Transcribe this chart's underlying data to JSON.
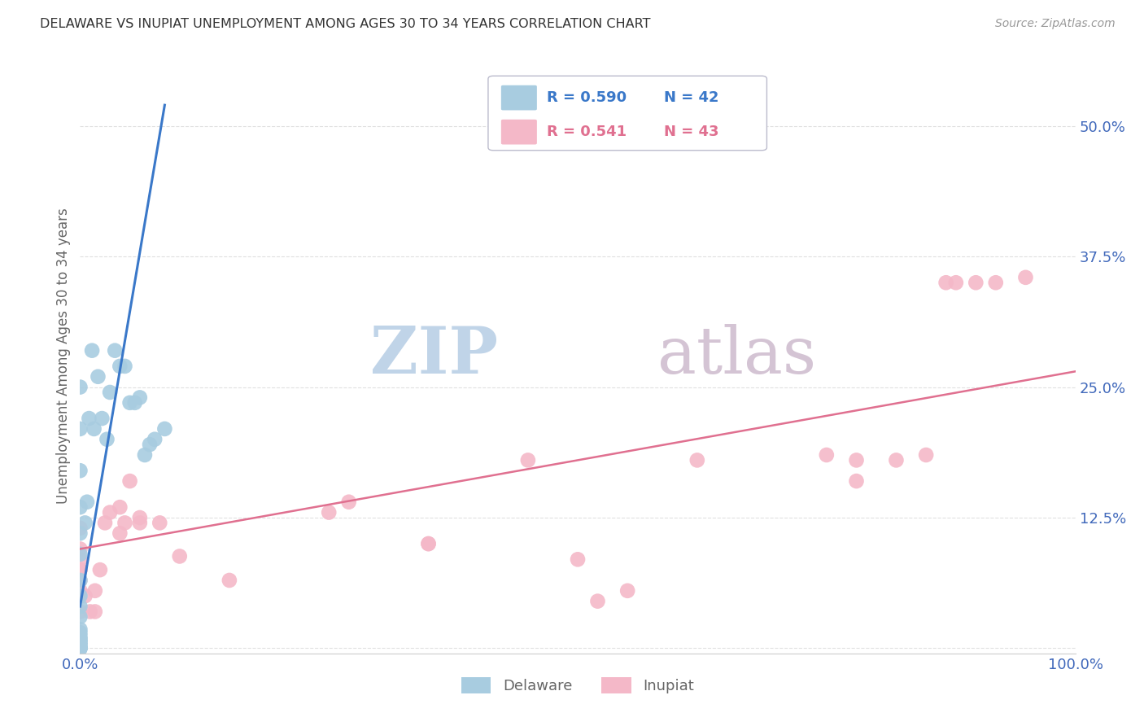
{
  "title": "DELAWARE VS INUPIAT UNEMPLOYMENT AMONG AGES 30 TO 34 YEARS CORRELATION CHART",
  "source": "Source: ZipAtlas.com",
  "ylabel": "Unemployment Among Ages 30 to 34 years",
  "xlim": [
    0.0,
    1.0
  ],
  "ylim": [
    -0.005,
    0.565
  ],
  "yticks": [
    0.0,
    0.125,
    0.25,
    0.375,
    0.5
  ],
  "ytick_labels": [
    "",
    "12.5%",
    "25.0%",
    "37.5%",
    "50.0%"
  ],
  "xticks": [
    0.0,
    0.1,
    0.2,
    0.3,
    0.4,
    0.5,
    0.6,
    0.7,
    0.8,
    0.9,
    1.0
  ],
  "xtick_labels": [
    "0.0%",
    "",
    "",
    "",
    "",
    "",
    "",
    "",
    "",
    "",
    "100.0%"
  ],
  "legend_r_blue": "R = 0.590",
  "legend_n_blue": "N = 42",
  "legend_r_pink": "R = 0.541",
  "legend_n_pink": "N = 43",
  "blue_color": "#a8cce0",
  "pink_color": "#f4b8c8",
  "blue_line_color": "#3a78c9",
  "pink_line_color": "#e07090",
  "axis_label_color": "#4169bb",
  "title_color": "#333333",
  "grid_color": "#e0e0e0",
  "watermark_zip_color": "#c5d8e8",
  "watermark_atlas_color": "#d8c8d8",
  "delaware_x": [
    0.0,
    0.0,
    0.0,
    0.0,
    0.0,
    0.0,
    0.0,
    0.0,
    0.0,
    0.0,
    0.0,
    0.0,
    0.0,
    0.0,
    0.0,
    0.0,
    0.0,
    0.0,
    0.0,
    0.0,
    0.0,
    0.0,
    0.0,
    0.005,
    0.007,
    0.009,
    0.012,
    0.014,
    0.018,
    0.022,
    0.027,
    0.03,
    0.035,
    0.04,
    0.045,
    0.05,
    0.055,
    0.06,
    0.065,
    0.07,
    0.075,
    0.085
  ],
  "delaware_y": [
    0.0,
    0.0,
    0.0,
    0.0,
    0.003,
    0.003,
    0.006,
    0.006,
    0.009,
    0.009,
    0.012,
    0.015,
    0.018,
    0.03,
    0.04,
    0.05,
    0.065,
    0.09,
    0.11,
    0.135,
    0.17,
    0.21,
    0.25,
    0.12,
    0.14,
    0.22,
    0.285,
    0.21,
    0.26,
    0.22,
    0.2,
    0.245,
    0.285,
    0.27,
    0.27,
    0.235,
    0.235,
    0.24,
    0.185,
    0.195,
    0.2,
    0.21
  ],
  "inupiat_x": [
    0.0,
    0.0,
    0.0,
    0.0,
    0.0,
    0.0,
    0.0,
    0.0,
    0.005,
    0.01,
    0.015,
    0.015,
    0.02,
    0.025,
    0.03,
    0.04,
    0.04,
    0.045,
    0.05,
    0.06,
    0.06,
    0.08,
    0.1,
    0.15,
    0.25,
    0.27,
    0.35,
    0.35,
    0.45,
    0.5,
    0.52,
    0.55,
    0.62,
    0.75,
    0.78,
    0.78,
    0.82,
    0.85,
    0.87,
    0.88,
    0.9,
    0.92,
    0.95
  ],
  "inupiat_y": [
    0.035,
    0.055,
    0.065,
    0.075,
    0.075,
    0.085,
    0.095,
    0.115,
    0.05,
    0.035,
    0.035,
    0.055,
    0.075,
    0.12,
    0.13,
    0.11,
    0.135,
    0.12,
    0.16,
    0.12,
    0.125,
    0.12,
    0.088,
    0.065,
    0.13,
    0.14,
    0.1,
    0.1,
    0.18,
    0.085,
    0.045,
    0.055,
    0.18,
    0.185,
    0.16,
    0.18,
    0.18,
    0.185,
    0.35,
    0.35,
    0.35,
    0.35,
    0.355
  ],
  "blue_trendline_x": [
    0.0,
    0.085
  ],
  "blue_trendline_y": [
    0.04,
    0.52
  ],
  "pink_trendline_x": [
    0.0,
    1.0
  ],
  "pink_trendline_y": [
    0.095,
    0.265
  ]
}
